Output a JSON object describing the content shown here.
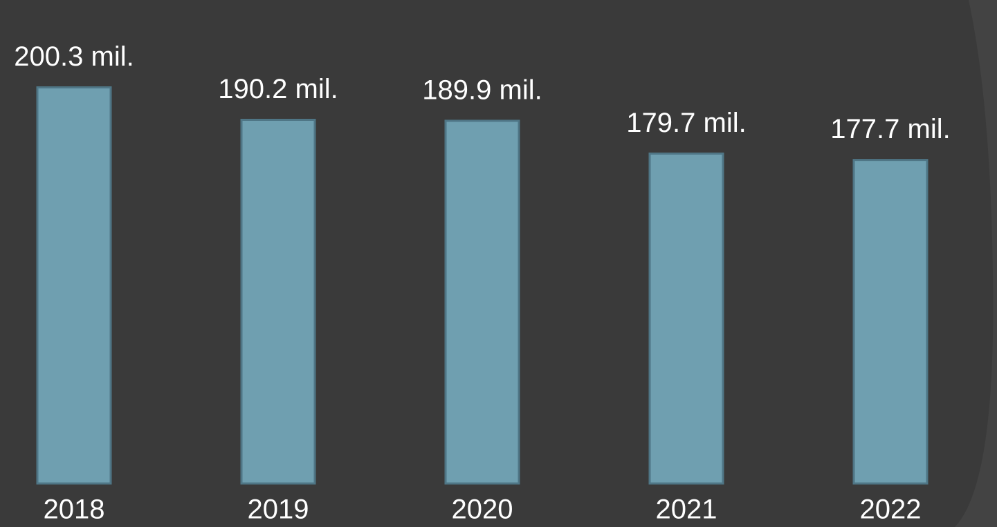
{
  "chart_data": {
    "type": "bar",
    "categories": [
      "2018",
      "2019",
      "2020",
      "2021",
      "2022"
    ],
    "values": [
      200.3,
      190.2,
      189.9,
      179.7,
      177.7
    ],
    "value_labels": [
      "200.3 mil.",
      "190.2 mil.",
      "189.9 mil.",
      "179.7 mil.",
      "177.7 mil."
    ],
    "color": "#6f9fb0",
    "ylim": [
      77,
      206
    ]
  }
}
